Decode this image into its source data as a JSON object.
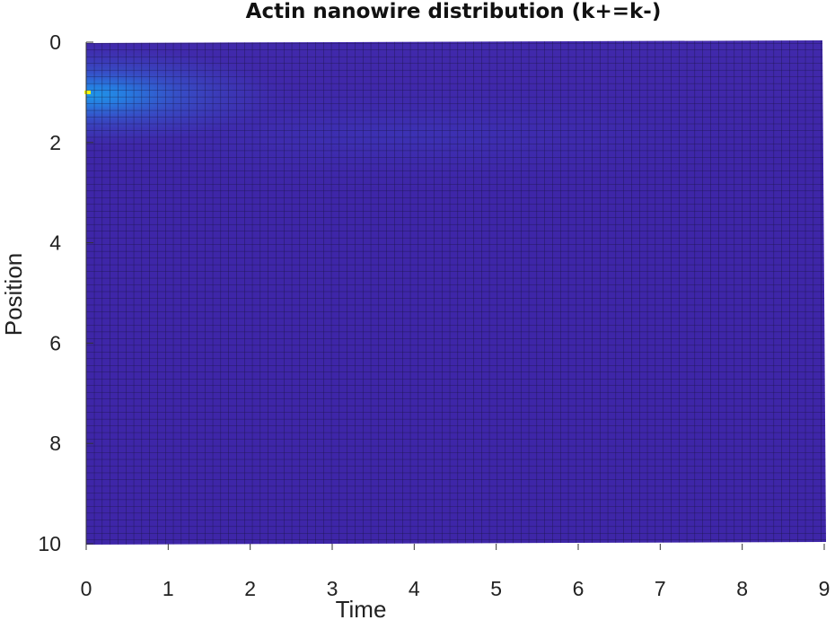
{
  "chart_data": {
    "type": "heatmap",
    "title": "Actin nanowire distribution (k+=k-)",
    "xlabel": "Time",
    "ylabel": "Position",
    "xlim": [
      0,
      9
    ],
    "ylim": [
      0,
      10
    ],
    "y_reversed": true,
    "x_ticks": [
      "0",
      "1",
      "2",
      "3",
      "4",
      "5",
      "6",
      "7",
      "8",
      "9"
    ],
    "y_ticks": [
      "0",
      "2",
      "4",
      "6",
      "8",
      "10"
    ],
    "colormap": "parula",
    "grid_lines": true,
    "grid_color": "#111111",
    "peak": {
      "x": 0,
      "y": 1,
      "color": "#f9fb0e"
    },
    "background_color": "#3e26a8",
    "note_values": "Density is high near Position 1 at Time 0 (peak), spreading and decaying toward later times; remaining field is near-uniform low density."
  }
}
